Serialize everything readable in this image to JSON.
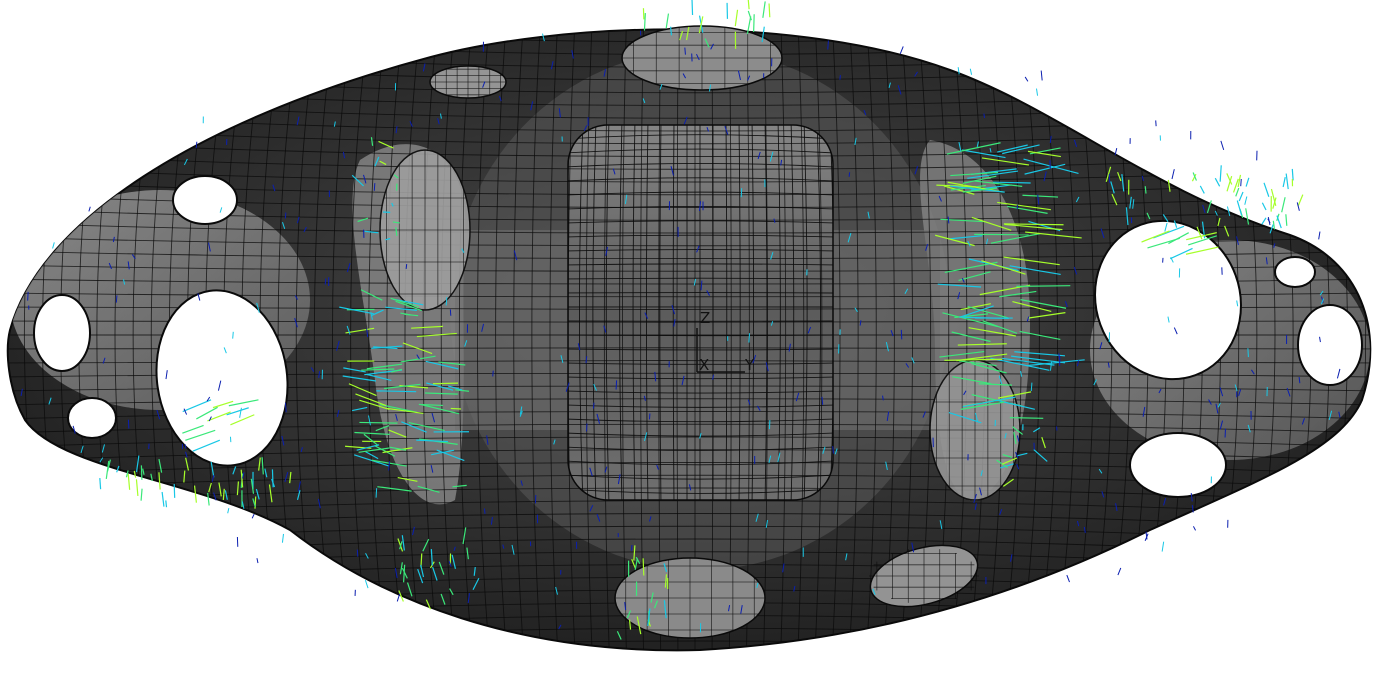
{
  "viewport": {
    "background": "#ffffff",
    "mesh_shell_color": "#2b2b2b",
    "mesh_face_light": "#9a9a9a",
    "mesh_face_mid": "#6e6e6e",
    "mesh_line_color": "#0a0a0a",
    "vector_colors": [
      "#0b1fb0",
      "#19c8e6",
      "#3be87a",
      "#a6ff2a"
    ]
  },
  "triad": {
    "z_label": "Z",
    "x_label": "X",
    "y_label": "Y"
  }
}
